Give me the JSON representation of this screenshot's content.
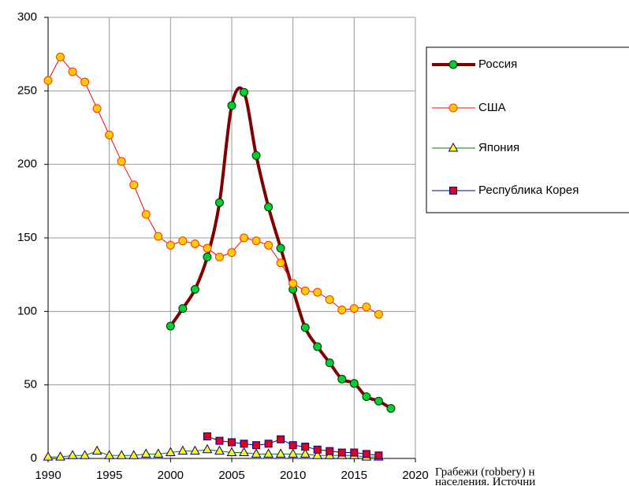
{
  "chart_data": {
    "type": "line",
    "x": [
      1990,
      1991,
      1992,
      1993,
      1994,
      1995,
      1996,
      1997,
      1998,
      1999,
      2000,
      2001,
      2002,
      2003,
      2004,
      2005,
      2006,
      2007,
      2008,
      2009,
      2010,
      2011,
      2012,
      2013,
      2014,
      2015,
      2016,
      2017,
      2018
    ],
    "series": [
      {
        "name": "Россия",
        "color": "#800000",
        "marker": "circle",
        "marker_color": "#00cc33",
        "line_width": 4,
        "smooth": true,
        "values": [
          null,
          null,
          null,
          null,
          null,
          null,
          null,
          null,
          null,
          null,
          90,
          102,
          115,
          137,
          174,
          240,
          249,
          206,
          171,
          143,
          115,
          89,
          76,
          65,
          54,
          51,
          42,
          39,
          34
        ]
      },
      {
        "name": "США",
        "color": "#ff0000",
        "marker": "circle",
        "marker_color": "#ffcc00",
        "line_width": 1,
        "smooth": false,
        "values": [
          257,
          273,
          263,
          256,
          238,
          220,
          202,
          186,
          166,
          151,
          145,
          148,
          146,
          143,
          137,
          140,
          150,
          148,
          145,
          133,
          119,
          114,
          113,
          108,
          101,
          102,
          103,
          98,
          null
        ]
      },
      {
        "name": "Япония",
        "color": "#008000",
        "marker": "triangle",
        "marker_color": "#ffff00",
        "line_width": 1,
        "smooth": false,
        "values": [
          1,
          1,
          2,
          2,
          5,
          2,
          2,
          2,
          3,
          3,
          4,
          5,
          5,
          6,
          5,
          4,
          4,
          3,
          3,
          3,
          3,
          3,
          2,
          2,
          2,
          2,
          1,
          1,
          null
        ]
      },
      {
        "name": "Республика Корея",
        "color": "#000080",
        "marker": "square",
        "marker_color": "#dd0022",
        "line_width": 1,
        "smooth": false,
        "values": [
          null,
          null,
          null,
          null,
          null,
          null,
          null,
          null,
          null,
          null,
          null,
          null,
          null,
          15,
          12,
          11,
          10,
          9,
          10,
          13,
          9,
          8,
          6,
          5,
          4,
          4,
          3,
          2,
          null
        ]
      }
    ],
    "xlim": [
      1990,
      2020
    ],
    "xticks": [
      1990,
      1995,
      2000,
      2005,
      2010,
      2015,
      2020
    ],
    "ylim": [
      0,
      300
    ],
    "yticks": [
      0,
      50,
      100,
      150,
      200,
      250,
      300
    ],
    "grid": true,
    "legend": "right",
    "annotations": [
      "Грабежи  (robbery)  н",
      "населения. Источни"
    ]
  }
}
